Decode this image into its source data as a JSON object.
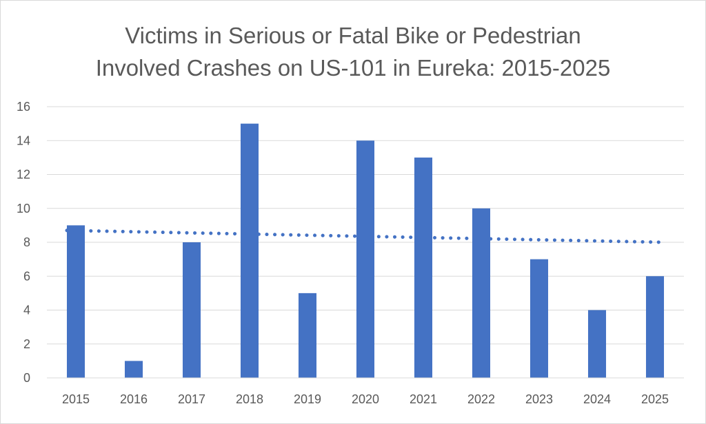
{
  "chart_data": {
    "type": "bar",
    "title_lines": [
      "Victims in Serious or Fatal Bike or Pedestrian",
      "Involved Crashes on US-101 in Eureka: 2015-2025"
    ],
    "categories": [
      "2015",
      "2016",
      "2017",
      "2018",
      "2019",
      "2020",
      "2021",
      "2022",
      "2023",
      "2024",
      "2025"
    ],
    "values": [
      9,
      1,
      8,
      15,
      5,
      14,
      13,
      10,
      7,
      4,
      6
    ],
    "xlabel": "",
    "ylabel": "",
    "ylim": [
      0,
      16
    ],
    "yticks": [
      "0",
      "2",
      "4",
      "6",
      "8",
      "10",
      "12",
      "14",
      "16"
    ],
    "trendline": {
      "type": "linear",
      "style": "dotted",
      "start": 8.7,
      "end": 8.0
    },
    "grid": true,
    "legend": "none",
    "colors": {
      "bar": "#4472C4",
      "trend": "#4472C4",
      "grid": "#D9D9D9",
      "text": "#595959"
    }
  }
}
